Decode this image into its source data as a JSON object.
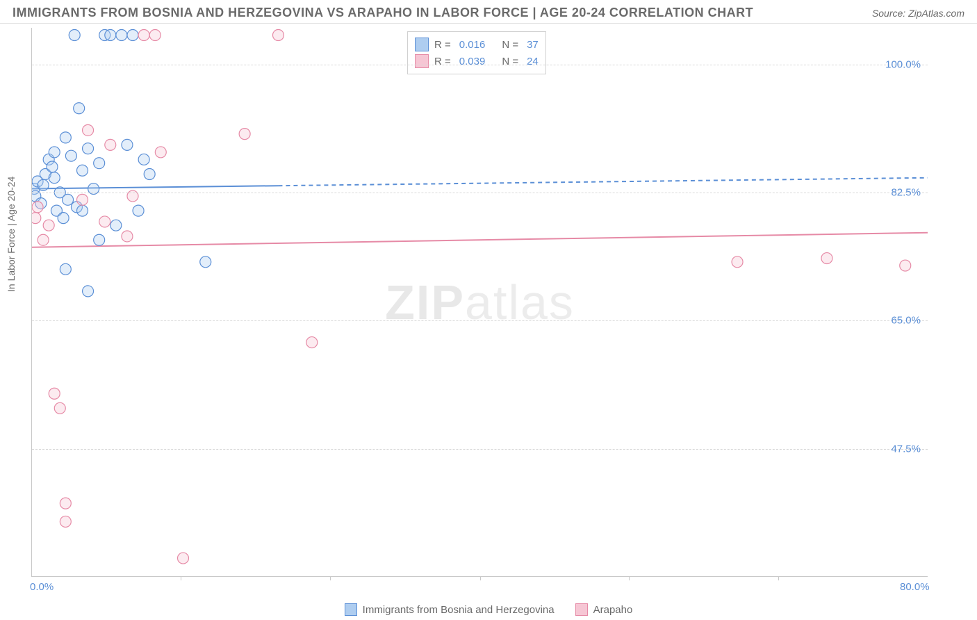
{
  "title": "IMMIGRANTS FROM BOSNIA AND HERZEGOVINA VS ARAPAHO IN LABOR FORCE | AGE 20-24 CORRELATION CHART",
  "source": "Source: ZipAtlas.com",
  "ylabel": "In Labor Force | Age 20-24",
  "watermark_a": "ZIP",
  "watermark_b": "atlas",
  "chart": {
    "type": "scatter",
    "xlim": [
      0,
      80
    ],
    "ylim": [
      30,
      105
    ],
    "x_ticks": [
      0,
      80
    ],
    "x_tick_labels": [
      "0.0%",
      "80.0%"
    ],
    "x_minor_ticks": [
      13.3,
      26.6,
      40,
      53.3,
      66.6
    ],
    "y_ticks": [
      47.5,
      65.0,
      82.5,
      100.0
    ],
    "y_tick_labels": [
      "47.5%",
      "65.0%",
      "82.5%",
      "100.0%"
    ],
    "grid_color": "#d8d8d8",
    "axis_color": "#c8c8c8",
    "tick_label_color": "#5b8fd6",
    "axis_label_color": "#6a6a6a",
    "background_color": "#ffffff",
    "marker_radius": 8,
    "marker_stroke_width": 1.2,
    "marker_fill_opacity": 0.35,
    "series": [
      {
        "name": "Immigrants from Bosnia and Herzegovina",
        "color_stroke": "#5b8fd6",
        "color_fill": "#aecdf0",
        "R": "0.016",
        "N": "37",
        "trend": {
          "y_start": 83.0,
          "y_end": 84.5,
          "solid_until_x": 22,
          "stroke_width": 2
        },
        "points": [
          [
            0.2,
            83.0
          ],
          [
            0.3,
            82.0
          ],
          [
            0.5,
            84.0
          ],
          [
            0.8,
            81.0
          ],
          [
            1.0,
            83.5
          ],
          [
            1.2,
            85.0
          ],
          [
            1.5,
            87.0
          ],
          [
            1.8,
            86.0
          ],
          [
            2.0,
            88.0
          ],
          [
            2.2,
            80.0
          ],
          [
            2.5,
            82.5
          ],
          [
            2.8,
            79.0
          ],
          [
            3.0,
            90.0
          ],
          [
            3.2,
            81.5
          ],
          [
            3.5,
            87.5
          ],
          [
            3.8,
            104.0
          ],
          [
            4.0,
            80.5
          ],
          [
            4.2,
            94.0
          ],
          [
            4.5,
            85.5
          ],
          [
            5.0,
            88.5
          ],
          [
            5.5,
            83.0
          ],
          [
            6.0,
            86.5
          ],
          [
            6.5,
            104.0
          ],
          [
            7.0,
            104.0
          ],
          [
            7.5,
            78.0
          ],
          [
            8.0,
            104.0
          ],
          [
            8.5,
            89.0
          ],
          [
            9.0,
            104.0
          ],
          [
            9.5,
            80.0
          ],
          [
            10.0,
            87.0
          ],
          [
            10.5,
            85.0
          ],
          [
            3.0,
            72.0
          ],
          [
            5.0,
            69.0
          ],
          [
            6.0,
            76.0
          ],
          [
            4.5,
            80.0
          ],
          [
            2.0,
            84.5
          ],
          [
            15.5,
            73.0
          ]
        ]
      },
      {
        "name": "Arapaho",
        "color_stroke": "#e68aa6",
        "color_fill": "#f6c6d4",
        "R": "0.039",
        "N": "24",
        "trend": {
          "y_start": 75.0,
          "y_end": 77.0,
          "solid_until_x": 80,
          "stroke_width": 2
        },
        "points": [
          [
            0.3,
            79.0
          ],
          [
            0.5,
            80.5
          ],
          [
            1.0,
            76.0
          ],
          [
            1.5,
            78.0
          ],
          [
            2.0,
            55.0
          ],
          [
            2.5,
            53.0
          ],
          [
            3.0,
            40.0
          ],
          [
            3.0,
            37.5
          ],
          [
            4.5,
            81.5
          ],
          [
            5.0,
            91.0
          ],
          [
            6.5,
            78.5
          ],
          [
            7.0,
            89.0
          ],
          [
            8.5,
            76.5
          ],
          [
            9.0,
            82.0
          ],
          [
            10.0,
            104.0
          ],
          [
            11.0,
            104.0
          ],
          [
            11.5,
            88.0
          ],
          [
            13.5,
            32.5
          ],
          [
            19.0,
            90.5
          ],
          [
            22.0,
            104.0
          ],
          [
            25.0,
            62.0
          ],
          [
            63.0,
            73.0
          ],
          [
            71.0,
            73.5
          ],
          [
            78.0,
            72.5
          ]
        ]
      }
    ]
  },
  "legend_top": {
    "r_label": "R =",
    "n_label": "N ="
  },
  "legend_bottom_labels": [
    "Immigrants from Bosnia and Herzegovina",
    "Arapaho"
  ]
}
